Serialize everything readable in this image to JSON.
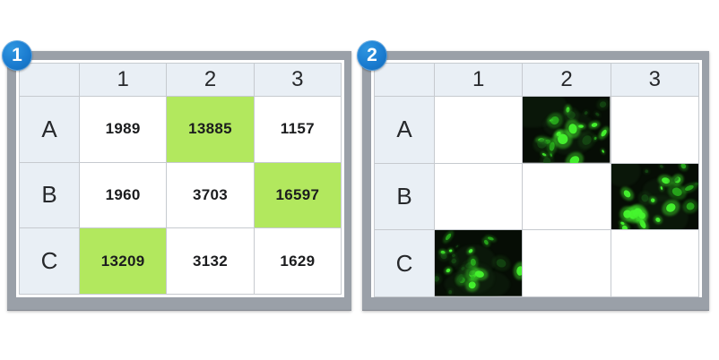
{
  "colors": {
    "frame_gray": "#9aa0a8",
    "header_fill": "#e9eff5",
    "highlight_green": "#b2e85e",
    "badge_blue": "#1b7cd0",
    "grid_line": "#c6cacf"
  },
  "panels": [
    {
      "badge": "1",
      "column_headers": [
        "1",
        "2",
        "3"
      ],
      "row_headers": [
        "A",
        "B",
        "C"
      ],
      "rows": [
        {
          "cells": [
            {
              "value": "1989",
              "highlight": false
            },
            {
              "value": "13885",
              "highlight": true
            },
            {
              "value": "1157",
              "highlight": false
            }
          ]
        },
        {
          "cells": [
            {
              "value": "1960",
              "highlight": false
            },
            {
              "value": "3703",
              "highlight": false
            },
            {
              "value": "16597",
              "highlight": true
            }
          ]
        },
        {
          "cells": [
            {
              "value": "13209",
              "highlight": true
            },
            {
              "value": "3132",
              "highlight": false
            },
            {
              "value": "1629",
              "highlight": false
            }
          ]
        }
      ]
    },
    {
      "badge": "2",
      "column_headers": [
        "1",
        "2",
        "3"
      ],
      "row_headers": [
        "A",
        "B",
        "C"
      ],
      "rows": [
        {
          "cells": [
            {
              "type": "empty"
            },
            {
              "type": "fluorescence-image"
            },
            {
              "type": "empty"
            }
          ]
        },
        {
          "cells": [
            {
              "type": "empty"
            },
            {
              "type": "empty"
            },
            {
              "type": "fluorescence-image"
            }
          ]
        },
        {
          "cells": [
            {
              "type": "fluorescence-image"
            },
            {
              "type": "empty"
            },
            {
              "type": "empty"
            }
          ]
        }
      ]
    }
  ]
}
